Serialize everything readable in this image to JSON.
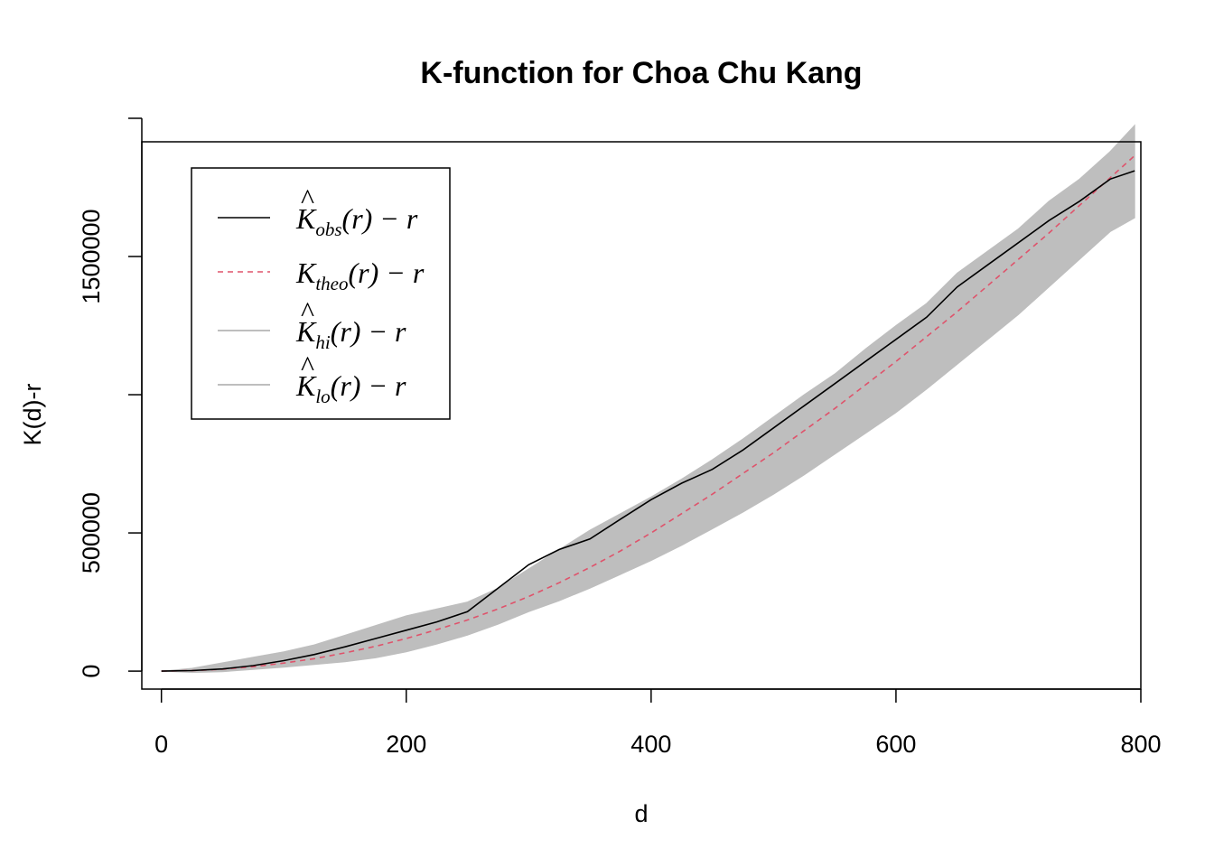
{
  "chart_data": {
    "type": "line",
    "title": "K-function for Choa Chu Kang",
    "xlabel": "d",
    "ylabel": "K(d)-r",
    "xlim": [
      -16,
      800
    ],
    "ylim": [
      -65000,
      1915000
    ],
    "x_ticks": [
      0,
      200,
      400,
      600,
      800
    ],
    "x_tick_labels": [
      "0",
      "200",
      "400",
      "600",
      "800"
    ],
    "y_ticks": [
      0,
      500000,
      1000000,
      1500000,
      2000000
    ],
    "y_tick_labels": [
      "0",
      "500000",
      "",
      "1500000",
      ""
    ],
    "grid": false,
    "legend_position": "top-left",
    "legend": [
      {
        "key": "obs",
        "main": "K",
        "hat": "^",
        "sub": "obs",
        "rest": "(r) − r",
        "color": "#000000",
        "style": "solid"
      },
      {
        "key": "theo",
        "main": "K",
        "hat": "",
        "sub": "theo",
        "rest": "(r) − r",
        "color": "#DF536B",
        "style": "dashed"
      },
      {
        "key": "hi",
        "main": "K",
        "hat": "^",
        "sub": "hi",
        "rest": "(r) − r",
        "color": "#BEBEBE",
        "style": "solid"
      },
      {
        "key": "lo",
        "main": "K",
        "hat": "^",
        "sub": "lo",
        "rest": "(r) − r",
        "color": "#BEBEBE",
        "style": "solid"
      }
    ],
    "x": [
      0,
      25,
      50,
      75,
      100,
      125,
      150,
      175,
      200,
      225,
      250,
      275,
      300,
      325,
      350,
      375,
      400,
      425,
      450,
      475,
      500,
      525,
      550,
      575,
      600,
      625,
      650,
      675,
      700,
      725,
      750,
      775,
      795
    ],
    "series": [
      {
        "name": "obs",
        "values": [
          0,
          2000,
          8000,
          20000,
          38000,
          60000,
          88000,
          118000,
          148000,
          178000,
          215000,
          300000,
          385000,
          440000,
          478000,
          550000,
          620000,
          680000,
          730000,
          800000,
          880000,
          960000,
          1040000,
          1120000,
          1200000,
          1280000,
          1390000,
          1470000,
          1550000,
          1630000,
          1700000,
          1780000,
          1810000
        ]
      },
      {
        "name": "theo",
        "values": [
          0,
          2000,
          7000,
          16000,
          29000,
          45000,
          66000,
          90000,
          118000,
          150000,
          185000,
          225000,
          270000,
          320000,
          375000,
          435000,
          500000,
          570000,
          640000,
          715000,
          790000,
          870000,
          950000,
          1035000,
          1120000,
          1210000,
          1300000,
          1395000,
          1490000,
          1585000,
          1685000,
          1785000,
          1865000
        ]
      },
      {
        "name": "hi",
        "values": [
          0,
          10000,
          30000,
          50000,
          70000,
          95000,
          130000,
          165000,
          200000,
          225000,
          250000,
          300000,
          370000,
          440000,
          510000,
          570000,
          630000,
          695000,
          765000,
          840000,
          920000,
          1000000,
          1075000,
          1165000,
          1250000,
          1330000,
          1440000,
          1520000,
          1600000,
          1700000,
          1780000,
          1880000,
          1975000
        ]
      },
      {
        "name": "lo",
        "values": [
          0,
          -5000,
          -2000,
          6000,
          14000,
          24000,
          34000,
          48000,
          70000,
          98000,
          130000,
          170000,
          215000,
          255000,
          300000,
          350000,
          400000,
          455000,
          515000,
          575000,
          640000,
          710000,
          785000,
          860000,
          935000,
          1020000,
          1110000,
          1200000,
          1290000,
          1390000,
          1490000,
          1590000,
          1640000
        ]
      }
    ]
  }
}
